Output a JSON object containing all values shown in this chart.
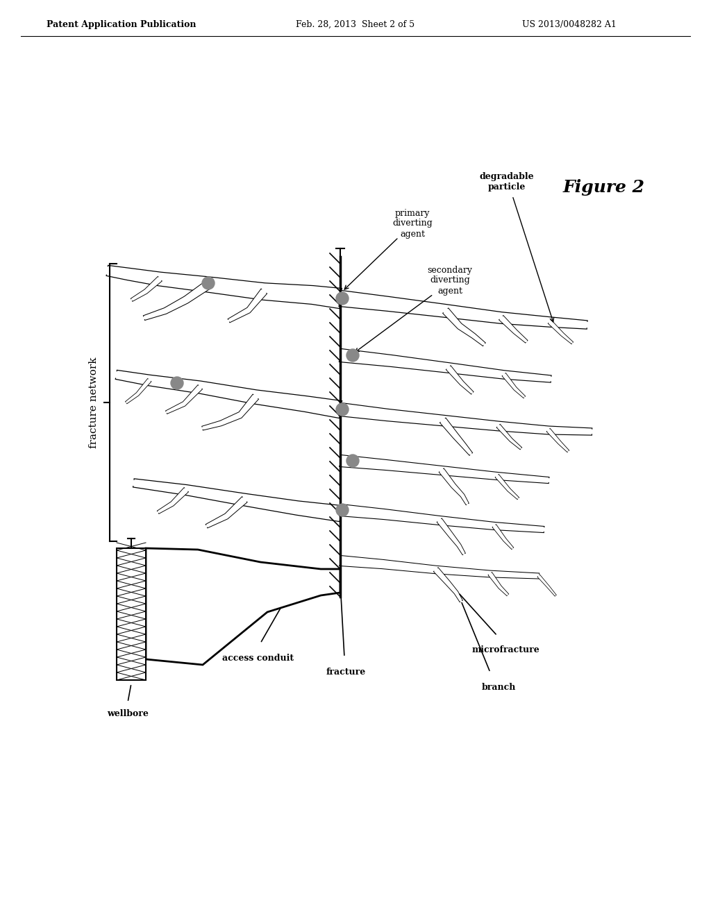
{
  "title": "Figure 2",
  "header_left": "Patent Application Publication",
  "header_center": "Feb. 28, 2013  Sheet 2 of 5",
  "header_right": "US 2013/0048282 A1",
  "background_color": "#ffffff",
  "text_color": "#000000",
  "labels": {
    "fracture_network": "fracture network",
    "wellbore": "wellbore",
    "access_conduit": "access conduit",
    "fracture": "fracture",
    "branch": "branch",
    "microfracture": "microfracture",
    "primary_diverting_agent": "primary\ndiverting\nagent",
    "secondary_diverting_agent": "secondary\ndiverting\nagent",
    "degradable_particle": "degradable\nparticle"
  }
}
